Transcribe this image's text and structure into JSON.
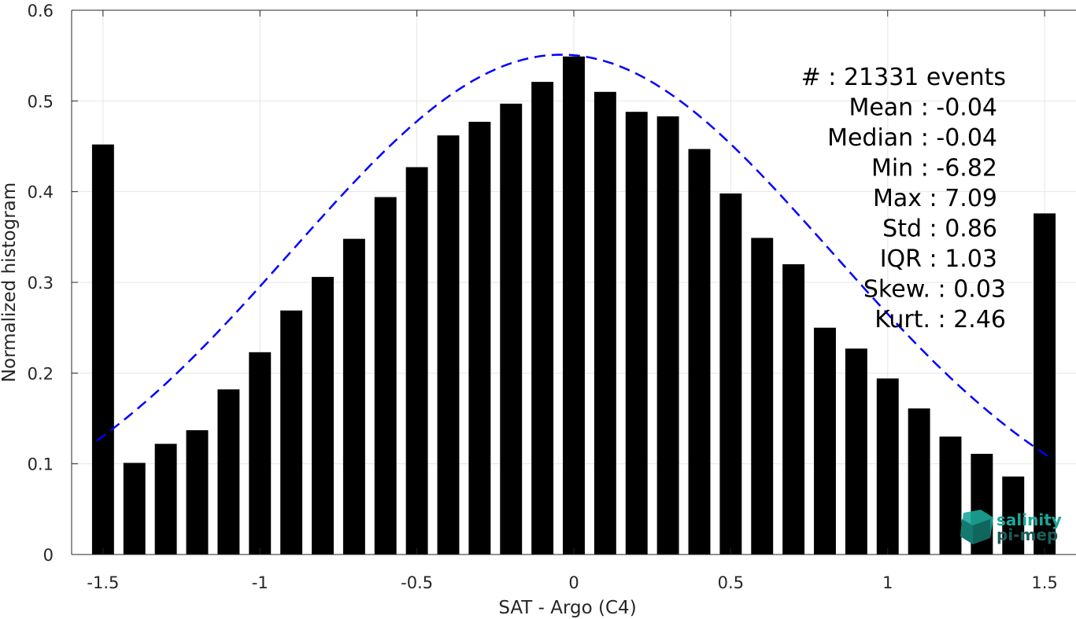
{
  "chart_data": {
    "type": "bar",
    "xlabel": "SAT - Argo (C4)",
    "ylabel": "Normalized histogram",
    "xlim": [
      -1.6,
      1.6
    ],
    "ylim": [
      0,
      0.6
    ],
    "xticks": [
      -1.5,
      -1,
      -0.5,
      0,
      0.5,
      1,
      1.5
    ],
    "xtick_labels": [
      "-1.5",
      "-1",
      "-0.5",
      "0",
      "0.5",
      "1",
      "1.5"
    ],
    "yticks": [
      0,
      0.1,
      0.2,
      0.3,
      0.4,
      0.5,
      0.6
    ],
    "ytick_labels": [
      "0",
      "0.1",
      "0.2",
      "0.3",
      "0.4",
      "0.5",
      "0.6"
    ],
    "grid": true,
    "bar_color": "#000000",
    "bin_width": 0.1,
    "x": [
      -1.5,
      -1.4,
      -1.3,
      -1.2,
      -1.1,
      -1.0,
      -0.9,
      -0.8,
      -0.7,
      -0.6,
      -0.5,
      -0.4,
      -0.3,
      -0.2,
      -0.1,
      0.0,
      0.1,
      0.2,
      0.3,
      0.4,
      0.5,
      0.6,
      0.7,
      0.8,
      0.9,
      1.0,
      1.1,
      1.2,
      1.3,
      1.4,
      1.5
    ],
    "values": [
      0.452,
      0.101,
      0.122,
      0.137,
      0.182,
      0.223,
      0.269,
      0.306,
      0.348,
      0.394,
      0.427,
      0.462,
      0.477,
      0.497,
      0.521,
      0.549,
      0.51,
      0.488,
      0.483,
      0.447,
      0.398,
      0.349,
      0.32,
      0.25,
      0.227,
      0.194,
      0.161,
      0.13,
      0.111,
      0.086,
      0.376
    ],
    "fit_curve": {
      "style": "dashed",
      "color": "#0000ff",
      "mean": -0.04,
      "std": 0.86,
      "peak": 0.551,
      "x_range": [
        -1.52,
        1.52
      ]
    },
    "stats": [
      "#  : 21331 events",
      "Mean : -0.04",
      "Median : -0.04",
      "Min : -6.82",
      "Max : 7.09",
      "Std : 0.86",
      "IQR : 1.03",
      "Skew. : 0.03",
      "Kurt. : 2.46"
    ]
  },
  "logo": {
    "line1": "salinity",
    "line2": "pi-mep",
    "color": "#1aa89a"
  }
}
